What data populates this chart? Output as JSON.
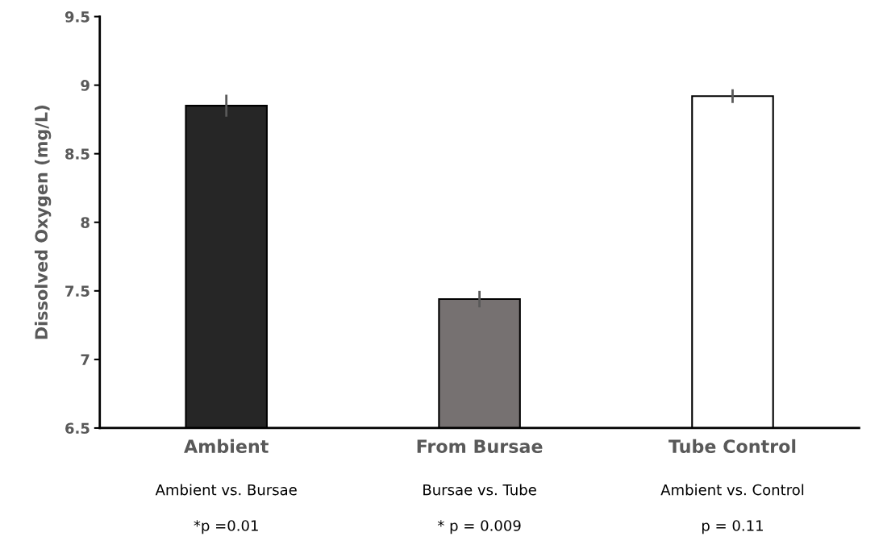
{
  "chart_data": {
    "type": "bar",
    "ylabel": "Dissolved Oxygen (mg/L)",
    "categories": [
      "Ambient",
      "From Bursae",
      "Tube Control"
    ],
    "values": [
      8.85,
      7.44,
      8.92
    ],
    "errors": [
      0.08,
      0.06,
      0.05
    ],
    "colors": [
      "#262626",
      "#767171",
      "#ffffff"
    ],
    "ylim": [
      6.5,
      9.5
    ],
    "yticks": [
      6.5,
      7,
      7.5,
      8,
      8.5,
      9,
      9.5
    ],
    "grid": false,
    "annotations": [
      "Ambient vs. Bursae",
      "*p =0.01",
      "Bursae vs. Tube",
      "* p = 0.009",
      "Ambient vs. Control",
      "p = 0.11"
    ]
  }
}
